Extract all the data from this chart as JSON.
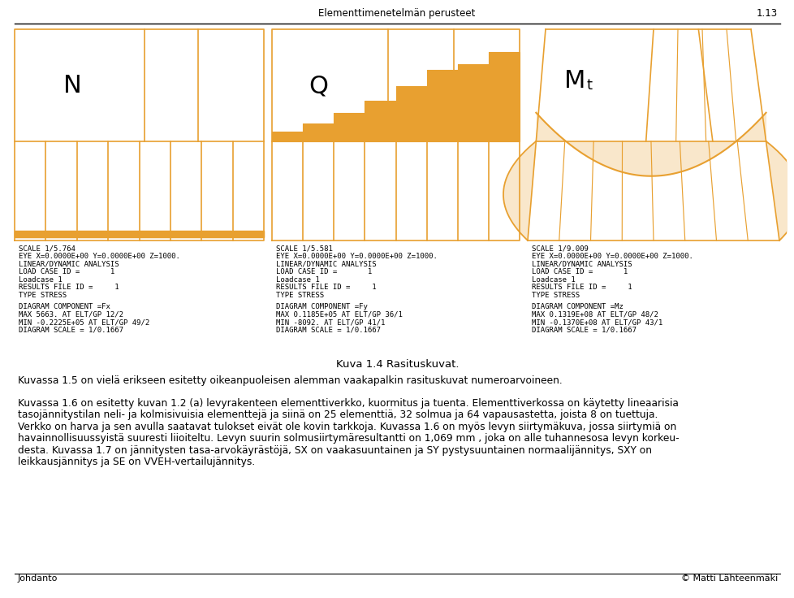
{
  "page_title": "Elementtimenetelmän perusteet",
  "page_number": "1.13",
  "footer_left": "Johdanto",
  "footer_right": "© Matti Lähteenmäki",
  "caption": "Kuva 1.4 Rasituskuvat.",
  "diagram_color": "#E8A030",
  "background_color": "#FFFFFF",
  "panel_N": {
    "label": "N",
    "text_lines": [
      "SCALE 1/5.764",
      "EYE X=0.0000E+00 Y=0.0000E+00 Z=1000.",
      "LINEAR/DYNAMIC ANALYSIS",
      "LOAD CASE ID =       1",
      "Loadcase 1",
      "RESULTS FILE ID =     1",
      "TYPE STRESS",
      "",
      "DIAGRAM COMPONENT =Fx",
      "MAX 5663. AT ELT/GP 12/2",
      "MIN -0.2225E+05 AT ELT/GP 49/2",
      "DIAGRAM SCALE = 1/0.1667"
    ]
  },
  "panel_Q": {
    "label": "Q",
    "text_lines": [
      "SCALE 1/5.581",
      "EYE X=0.0000E+00 Y=0.0000E+00 Z=1000.",
      "LINEAR/DYNAMIC ANALYSIS",
      "LOAD CASE ID =       1",
      "Loadcase 1",
      "RESULTS FILE ID =     1",
      "TYPE STRESS",
      "",
      "DIAGRAM COMPONENT =Fy",
      "MAX 0.1185E+05 AT ELT/GP 36/1",
      "MIN -8092. AT ELT/GP 41/1",
      "DIAGRAM SCALE = 1/0.1667"
    ]
  },
  "panel_M": {
    "label_M": "M",
    "label_t": "t",
    "text_lines": [
      "SCALE 1/9.009",
      "EYE X=0.0000E+00 Y=0.0000E+00 Z=1000.",
      "LINEAR/DYNAMIC ANALYSIS",
      "LOAD CASE ID =       1",
      "Loadcase 1",
      "RESULTS FILE ID =     1",
      "TYPE STRESS",
      "",
      "DIAGRAM COMPONENT =Mz",
      "MAX 0.1319E+08 AT ELT/GP 48/2",
      "MIN -0.1370E+08 AT ELT/GP 43/1",
      "DIAGRAM SCALE = 1/0.1667"
    ]
  },
  "body_paragraphs": [
    "Kuvassa 1.5 on vielä erikseen esitetty oikeanpuoleisen alemman vaakapalkin rasituskuvat numeroarvoineen.",
    "Kuvassa 1.6 on esitetty kuvan 1.2 (a) levyrakenteen elementtiverkko, kuormitus ja tuenta. Elementtiverkossa on käytetty lineaarisia",
    "tasojännitystilan neli- ja kolmisivuisia elementtejä ja siinä on 25 elementtiä, 32 solmua ja 64 vapausastetta, joista 8 on tuettuja.",
    "Verkko on harva ja sen avulla saatavat tulokset eivät ole kovin tarkkoja. Kuvassa 1.6 on myös levyn siirtymäkuva, jossa siirtymiä on",
    "havainnollisuussyistä suuresti liioiteltu. Levyn suurin solmusiirtymäresultantti on 1,069 mm , joka on alle tuhannesosa levyn korkeu-",
    "desta. Kuvassa 1.7 on jännitysten tasa-arvokäyrästöjä, SX on vaakasuuntainen ja SY pystysuuntainen normaalijännitys, SXY on",
    "leikkausjännitys ja SE on VVEH-vertailujännitys."
  ]
}
